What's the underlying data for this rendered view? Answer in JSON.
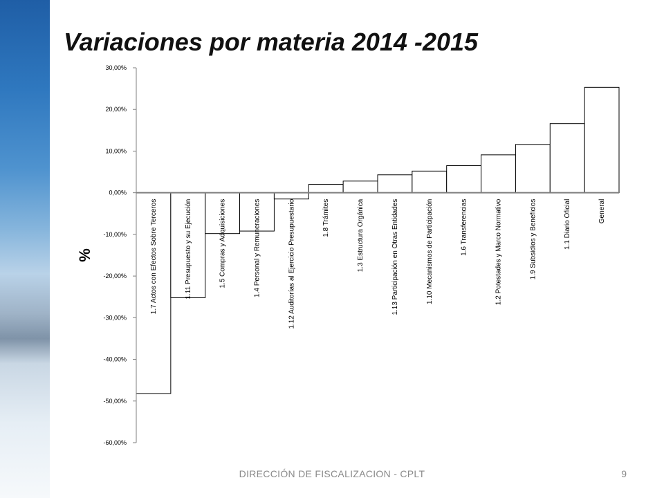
{
  "slide": {
    "title": "Variaciones por materia 2014 -2015",
    "footer": "DIRECCIÓN DE FISCALIZACION - CPLT",
    "page_number": "9"
  },
  "chart_data": {
    "type": "bar",
    "title": "",
    "xlabel": "",
    "ylabel": "%",
    "ylim": [
      -60,
      30
    ],
    "y_ticks": [
      "30,00%",
      "20,00%",
      "10,00%",
      "0,00%",
      "-10,00%",
      "-20,00%",
      "-30,00%",
      "-40,00%",
      "-50,00%",
      "-60,00%"
    ],
    "y_tick_values": [
      30,
      20,
      10,
      0,
      -10,
      -20,
      -30,
      -40,
      -50,
      -60
    ],
    "grid": false,
    "legend": "none",
    "bar_fill": "#ffffff",
    "bar_stroke": "#000000",
    "zero_line_color": "#7f7f7f",
    "categories": [
      "1.7 Actos con Efectos Sobre Terceros",
      "1.11 Presupuesto y su Ejecución",
      "1.5 Compras y Adquisiciones",
      "1.4 Personal y Remuneraciones",
      "1.12 Auditorías al Ejercicio Presupuestario",
      "1.8 Trámites",
      "1.3 Estructura Orgánica",
      "1.13 Participación en Otras Entidades",
      "1.10 Mecanismos de Participación",
      "1.6 Transferencias",
      "1.2 Potestades y Marco Normativo",
      "1.9 Subsidios y Beneficios",
      "1.1 Diario Oficial",
      "General"
    ],
    "values": [
      -48.2,
      -25.2,
      -9.8,
      -9.2,
      -1.5,
      2.0,
      2.8,
      4.3,
      5.2,
      6.5,
      9.1,
      11.6,
      16.6,
      25.3
    ]
  }
}
